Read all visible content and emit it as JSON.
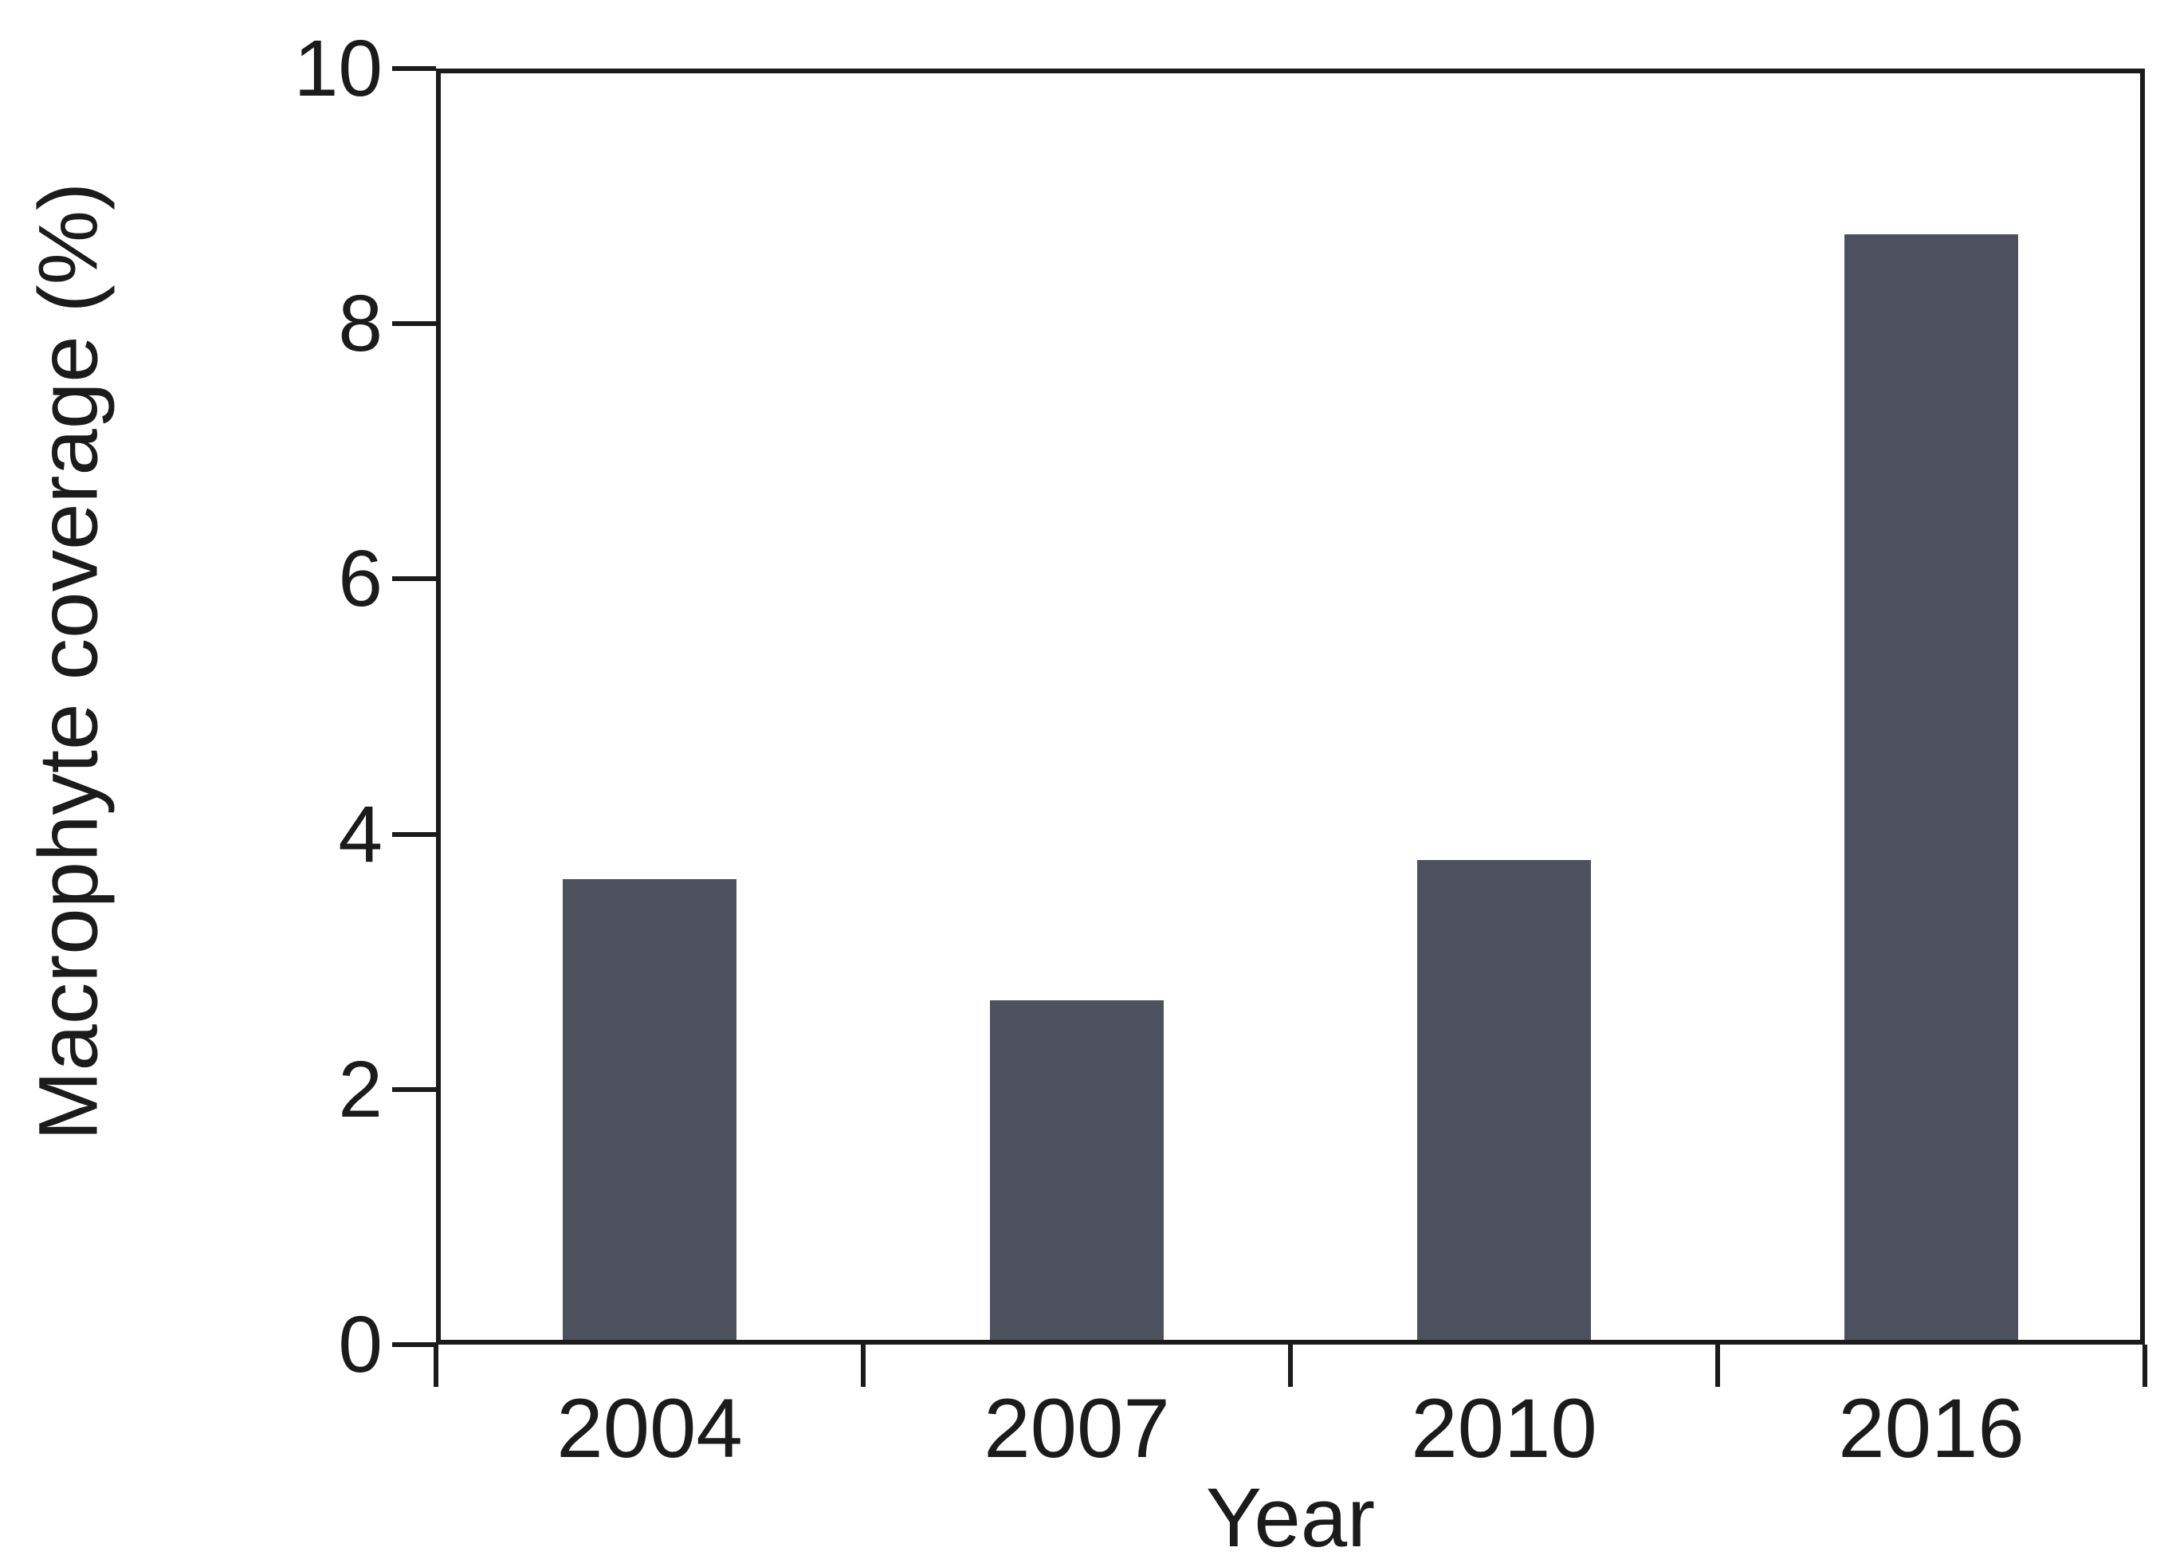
{
  "figure": {
    "y_axis_title": "Macrophyte coverage (%)",
    "x_axis_title": "Year"
  },
  "colors": {
    "bar": "#4d515e",
    "axis": "#1b1b1b",
    "text": "#1b1b1b",
    "background": "#ffffff"
  },
  "chart_data": {
    "type": "bar",
    "categories": [
      "2004",
      "2007",
      "2010",
      "2016"
    ],
    "values": [
      3.65,
      2.7,
      3.8,
      8.7
    ],
    "title": "",
    "xlabel": "Year",
    "ylabel": "Macrophyte coverage (%)",
    "ylim": [
      0,
      10
    ],
    "yticks": [
      0,
      2,
      4,
      6,
      8,
      10
    ],
    "ytick_labels": [
      "0",
      "2",
      "4",
      "6",
      "8",
      "10"
    ],
    "xticks_at_category_boundaries": true,
    "grid": false,
    "legend": false,
    "frame": "full-box",
    "bar_color": "#4d515e"
  }
}
